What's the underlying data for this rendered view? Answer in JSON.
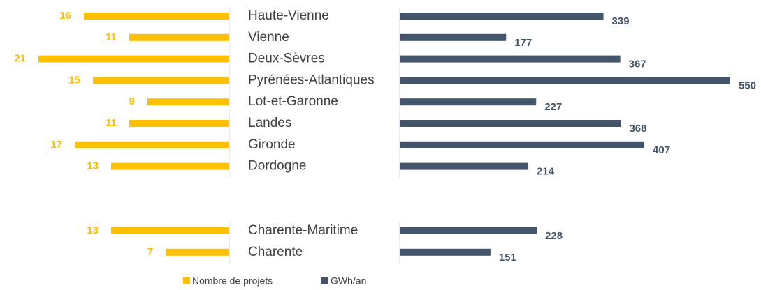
{
  "chart_data": {
    "type": "butterfly-bar",
    "categories": [
      "Haute-Vienne",
      "Vienne",
      "Deux-Sèvres",
      "Pyrénées-Atlantiques",
      "Lot-et-Garonne",
      "Landes",
      "Gironde",
      "Dordogne",
      null,
      null,
      "Charente-Maritime",
      "Charente"
    ],
    "series": [
      {
        "name": "Nombre de projets",
        "color": "#FFC000",
        "values": [
          16,
          11,
          21,
          15,
          9,
          11,
          17,
          13,
          null,
          null,
          13,
          7
        ]
      },
      {
        "name": "GWh/an",
        "color": "#44546A",
        "values": [
          339,
          177,
          367,
          550,
          227,
          368,
          407,
          214,
          null,
          null,
          228,
          151
        ]
      }
    ]
  }
}
